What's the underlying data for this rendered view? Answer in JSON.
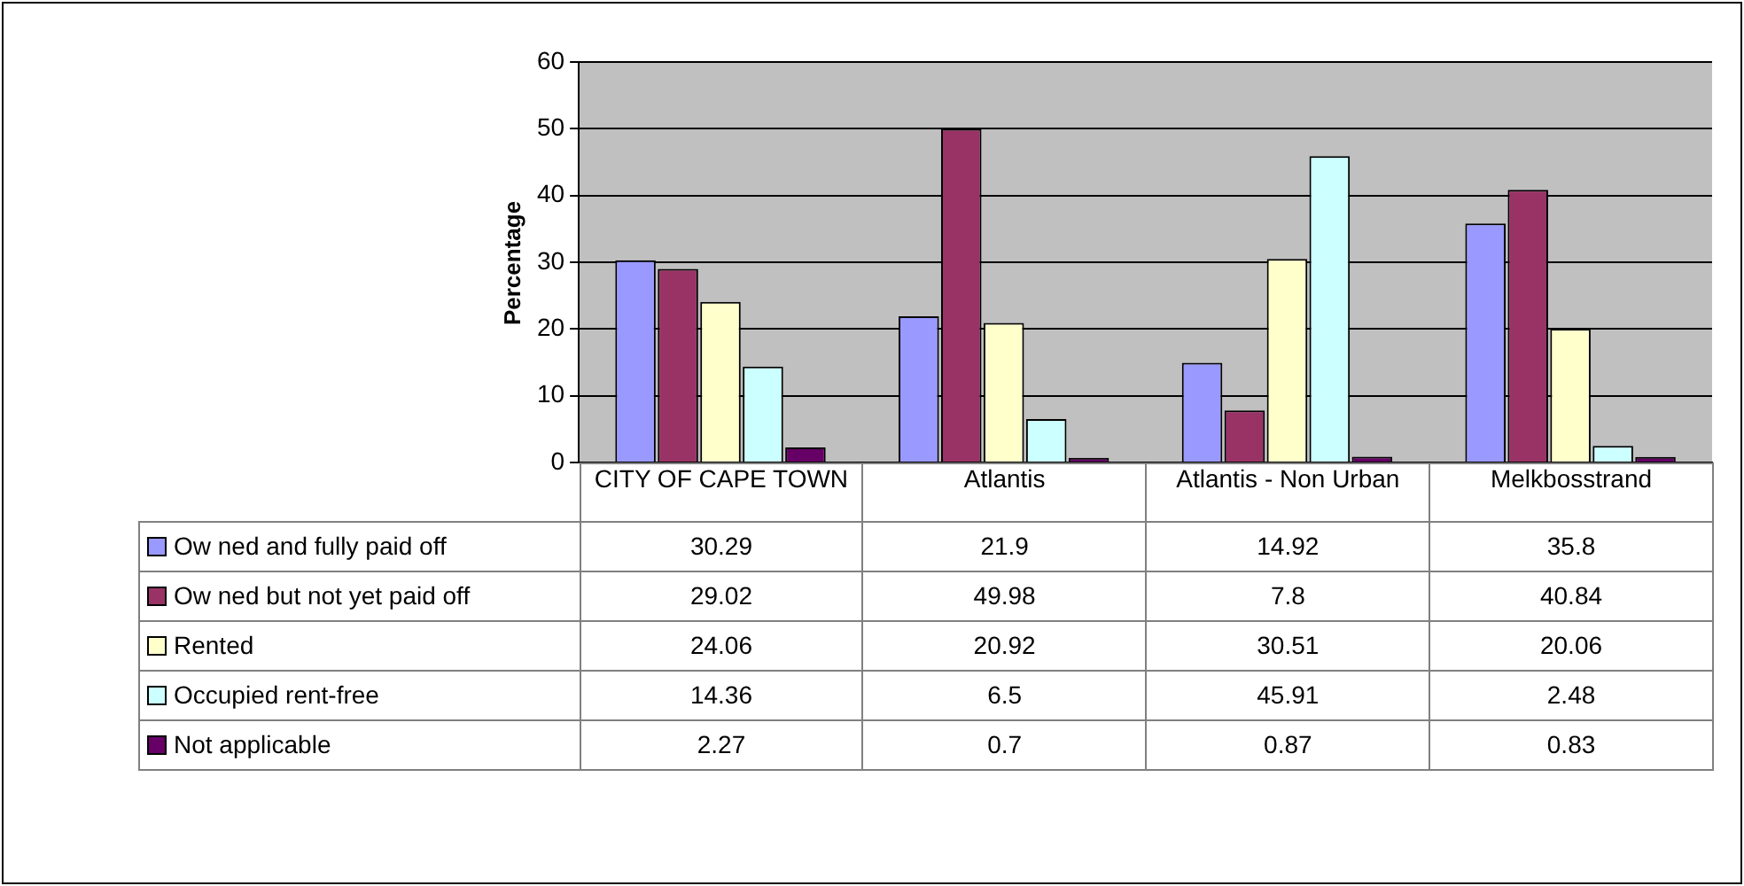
{
  "chart_data": {
    "type": "bar",
    "ylabel": "Percentage",
    "categories": [
      "CITY OF CAPE TOWN",
      "Atlantis",
      "Atlantis - Non Urban",
      "Melkbosstrand"
    ],
    "series": [
      {
        "name": "Ow ned and fully paid off",
        "color": "#9999ff",
        "values": [
          30.29,
          21.9,
          14.92,
          35.8
        ]
      },
      {
        "name": "Ow ned but not yet paid off",
        "color": "#993366",
        "values": [
          29.02,
          49.98,
          7.8,
          40.84
        ]
      },
      {
        "name": "Rented",
        "color": "#ffffcc",
        "values": [
          24.06,
          20.92,
          30.51,
          20.06
        ]
      },
      {
        "name": "Occupied rent-free",
        "color": "#ccffff",
        "values": [
          14.36,
          6.5,
          45.91,
          2.48
        ]
      },
      {
        "name": "Not applicable",
        "color": "#660066",
        "values": [
          2.27,
          0.7,
          0.87,
          0.83
        ]
      }
    ],
    "ylim": [
      0,
      60
    ],
    "yticks": [
      0,
      10,
      20,
      30,
      40,
      50,
      60
    ],
    "grid": "y",
    "legend": "bottom",
    "data_labels": true
  }
}
